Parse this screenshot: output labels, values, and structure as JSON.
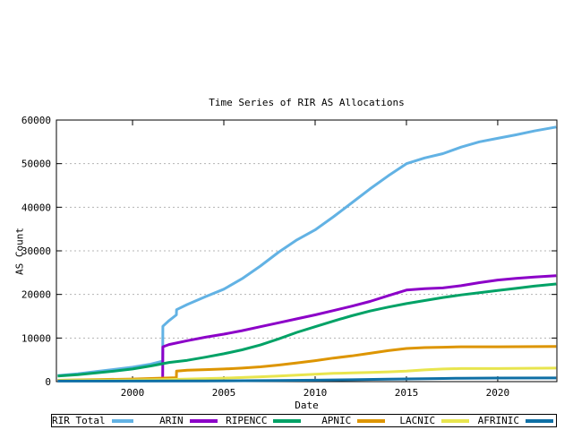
{
  "chart_data": {
    "type": "line",
    "title": "Time Series of RIR AS Allocations",
    "xlabel": "Date",
    "ylabel": "AS Count",
    "xlim": [
      1995.83,
      2023.24
    ],
    "ylim": [
      0,
      60000
    ],
    "x_ticks": [
      2000,
      2005,
      2010,
      2015,
      2020
    ],
    "y_ticks": [
      0,
      10000,
      20000,
      30000,
      40000,
      50000,
      60000
    ],
    "grid": "horizontal-dotted",
    "legend_position": "bottom-outside",
    "series": [
      {
        "name": "RIR Total",
        "color": "#62b2e4",
        "points": [
          [
            1995.9,
            1400
          ],
          [
            1997,
            1800
          ],
          [
            1998,
            2300
          ],
          [
            1999,
            2800
          ],
          [
            2000,
            3300
          ],
          [
            2001,
            4000
          ],
          [
            2001.65,
            4700
          ],
          [
            2001.66,
            12700
          ],
          [
            2002.0,
            14000
          ],
          [
            2002.4,
            15300
          ],
          [
            2002.41,
            16500
          ],
          [
            2003,
            17700
          ],
          [
            2004,
            19500
          ],
          [
            2005,
            21200
          ],
          [
            2006,
            23600
          ],
          [
            2007,
            26500
          ],
          [
            2008,
            29700
          ],
          [
            2009,
            32500
          ],
          [
            2010,
            34800
          ],
          [
            2011,
            37800
          ],
          [
            2012,
            41000
          ],
          [
            2013,
            44200
          ],
          [
            2014,
            47200
          ],
          [
            2015,
            50000
          ],
          [
            2016,
            51300
          ],
          [
            2017,
            52300
          ],
          [
            2018,
            53800
          ],
          [
            2019,
            55000
          ],
          [
            2020,
            55800
          ],
          [
            2021,
            56600
          ],
          [
            2022,
            57500
          ],
          [
            2023.2,
            58400
          ]
        ]
      },
      {
        "name": "ARIN",
        "color": "#8c00c8",
        "points": [
          [
            1995.9,
            250
          ],
          [
            2000,
            450
          ],
          [
            2001.65,
            650
          ],
          [
            2001.66,
            8000
          ],
          [
            2002,
            8500
          ],
          [
            2003,
            9400
          ],
          [
            2004,
            10200
          ],
          [
            2005,
            10900
          ],
          [
            2006,
            11700
          ],
          [
            2007,
            12600
          ],
          [
            2008,
            13500
          ],
          [
            2009,
            14400
          ],
          [
            2010,
            15300
          ],
          [
            2011,
            16300
          ],
          [
            2012,
            17300
          ],
          [
            2013,
            18400
          ],
          [
            2014,
            19700
          ],
          [
            2015,
            21000
          ],
          [
            2016,
            21300
          ],
          [
            2017,
            21500
          ],
          [
            2018,
            22000
          ],
          [
            2019,
            22700
          ],
          [
            2020,
            23300
          ],
          [
            2021,
            23700
          ],
          [
            2022,
            24000
          ],
          [
            2023.2,
            24300
          ]
        ]
      },
      {
        "name": "RIPENCC",
        "color": "#00a266",
        "points": [
          [
            1995.9,
            1300
          ],
          [
            1997,
            1600
          ],
          [
            1998,
            2000
          ],
          [
            1999,
            2400
          ],
          [
            2000,
            2900
          ],
          [
            2001,
            3600
          ],
          [
            2002,
            4400
          ],
          [
            2003,
            4900
          ],
          [
            2004,
            5600
          ],
          [
            2005,
            6400
          ],
          [
            2006,
            7300
          ],
          [
            2007,
            8400
          ],
          [
            2008,
            9800
          ],
          [
            2009,
            11300
          ],
          [
            2010,
            12600
          ],
          [
            2011,
            13900
          ],
          [
            2012,
            15100
          ],
          [
            2013,
            16200
          ],
          [
            2014,
            17100
          ],
          [
            2015,
            17900
          ],
          [
            2016,
            18600
          ],
          [
            2017,
            19300
          ],
          [
            2018,
            19900
          ],
          [
            2019,
            20400
          ],
          [
            2020,
            20900
          ],
          [
            2021,
            21400
          ],
          [
            2022,
            21900
          ],
          [
            2023.2,
            22400
          ]
        ]
      },
      {
        "name": "APNIC",
        "color": "#dd9500",
        "points": [
          [
            1995.9,
            300
          ],
          [
            2000,
            600
          ],
          [
            2002.4,
            900
          ],
          [
            2002.41,
            2400
          ],
          [
            2003,
            2600
          ],
          [
            2004,
            2750
          ],
          [
            2005,
            2900
          ],
          [
            2006,
            3100
          ],
          [
            2007,
            3400
          ],
          [
            2008,
            3800
          ],
          [
            2009,
            4300
          ],
          [
            2010,
            4800
          ],
          [
            2011,
            5400
          ],
          [
            2012,
            5900
          ],
          [
            2013,
            6500
          ],
          [
            2014,
            7100
          ],
          [
            2015,
            7600
          ],
          [
            2016,
            7800
          ],
          [
            2017,
            7900
          ],
          [
            2018,
            8000
          ],
          [
            2020,
            8000
          ],
          [
            2023.2,
            8050
          ]
        ]
      },
      {
        "name": "LACNIC",
        "color": "#e8e54e",
        "points": [
          [
            1995.9,
            300
          ],
          [
            2000,
            400
          ],
          [
            2002,
            500
          ],
          [
            2004,
            700
          ],
          [
            2005,
            800
          ],
          [
            2006,
            950
          ],
          [
            2007,
            1100
          ],
          [
            2008,
            1300
          ],
          [
            2009,
            1500
          ],
          [
            2010,
            1700
          ],
          [
            2011,
            1900
          ],
          [
            2012,
            2000
          ],
          [
            2013,
            2100
          ],
          [
            2014,
            2250
          ],
          [
            2015,
            2400
          ],
          [
            2016,
            2700
          ],
          [
            2017,
            2900
          ],
          [
            2018,
            3000
          ],
          [
            2020,
            3000
          ],
          [
            2023.2,
            3100
          ]
        ]
      },
      {
        "name": "AFRINIC",
        "color": "#0e6fa5",
        "points": [
          [
            1995.9,
            120
          ],
          [
            2004,
            150
          ],
          [
            2005,
            180
          ],
          [
            2007,
            220
          ],
          [
            2008,
            260
          ],
          [
            2010,
            330
          ],
          [
            2012,
            430
          ],
          [
            2014,
            550
          ],
          [
            2015,
            620
          ],
          [
            2016,
            680
          ],
          [
            2017,
            720
          ],
          [
            2018,
            780
          ],
          [
            2020,
            820
          ],
          [
            2023.2,
            850
          ]
        ]
      }
    ]
  }
}
